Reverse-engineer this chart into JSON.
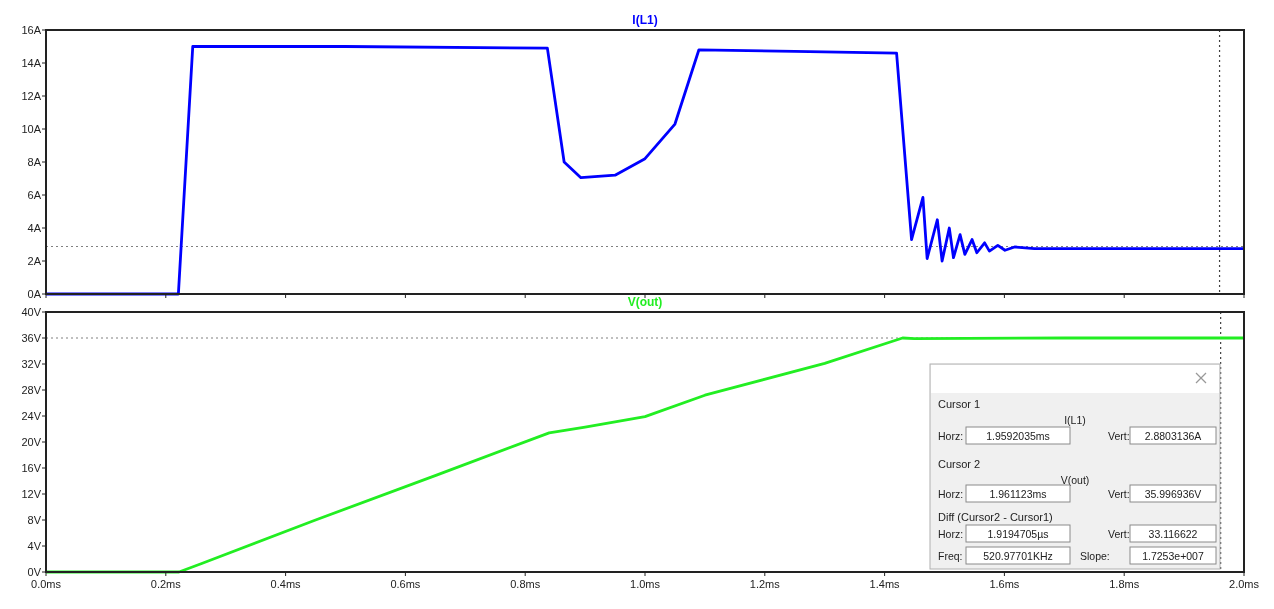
{
  "chart_data": [
    {
      "type": "line",
      "tick_labels": "y",
      "grid": false,
      "marker": "none",
      "line_style": "solid",
      "xlim": [
        0,
        2.0
      ],
      "xticks": [
        {
          "value": 0,
          "label": null
        },
        {
          "value": 0.2,
          "label": null
        },
        {
          "value": 0.4,
          "label": null
        },
        {
          "value": 0.6,
          "label": null
        },
        {
          "value": 0.8,
          "label": null
        },
        {
          "value": 1.0,
          "label": null
        },
        {
          "value": 1.2,
          "label": null
        },
        {
          "value": 1.4,
          "label": null
        },
        {
          "value": 1.6,
          "label": null
        },
        {
          "value": 1.8,
          "label": null
        },
        {
          "value": 2.0,
          "label": null
        }
      ],
      "ylim": [
        0,
        16
      ],
      "yticks": [
        {
          "value": 0,
          "label": "0A"
        },
        {
          "value": 2,
          "label": "2A"
        },
        {
          "value": 4,
          "label": "4A"
        },
        {
          "value": 6,
          "label": "6A"
        },
        {
          "value": 8,
          "label": "8A"
        },
        {
          "value": 10,
          "label": "10A"
        },
        {
          "value": 12,
          "label": "12A"
        },
        {
          "value": 14,
          "label": "14A"
        },
        {
          "value": 16,
          "label": "16A"
        }
      ],
      "series": [
        {
          "name": "I(L1)",
          "color": "#0000ff",
          "x": [
            0,
            0.221,
            0.245,
            0.5,
            0.837,
            0.865,
            0.893,
            0.95,
            1.0,
            1.05,
            1.09,
            1.25,
            1.42,
            1.445,
            1.464,
            1.471,
            1.488,
            1.496,
            1.508,
            1.515,
            1.526,
            1.534,
            1.546,
            1.554,
            1.567,
            1.575,
            1.589,
            1.601,
            1.617,
            1.65,
            1.8,
            2.0
          ],
          "values": [
            0,
            0,
            15.0,
            15.0,
            14.9,
            8.0,
            7.05,
            7.2,
            8.2,
            10.3,
            14.8,
            14.7,
            14.6,
            3.3,
            5.85,
            2.15,
            4.5,
            2.0,
            4.0,
            2.2,
            3.6,
            2.4,
            3.3,
            2.5,
            3.1,
            2.6,
            2.95,
            2.65,
            2.85,
            2.75,
            2.75,
            2.75
          ]
        }
      ],
      "ref_lines": [
        {
          "axis": "y",
          "value": 2.88,
          "color": "#808080",
          "line_style": "dotted"
        },
        {
          "axis": "x",
          "value": 1.9592,
          "color": "#404040",
          "line_style": "dotted"
        }
      ]
    },
    {
      "type": "line",
      "grid": false,
      "marker": "none",
      "line_style": "solid",
      "xlim": [
        0,
        2.0
      ],
      "xticks": [
        {
          "value": 0,
          "label": "0.0ms"
        },
        {
          "value": 0.2,
          "label": "0.2ms"
        },
        {
          "value": 0.4,
          "label": "0.4ms"
        },
        {
          "value": 0.6,
          "label": "0.6ms"
        },
        {
          "value": 0.8,
          "label": "0.8ms"
        },
        {
          "value": 1.0,
          "label": "1.0ms"
        },
        {
          "value": 1.2,
          "label": "1.2ms"
        },
        {
          "value": 1.4,
          "label": "1.4ms"
        },
        {
          "value": 1.6,
          "label": "1.6ms"
        },
        {
          "value": 1.8,
          "label": "1.8ms"
        },
        {
          "value": 2.0,
          "label": "2.0ms"
        }
      ],
      "ylim": [
        0,
        40
      ],
      "yticks": [
        {
          "value": 0,
          "label": "0V"
        },
        {
          "value": 4,
          "label": "4V"
        },
        {
          "value": 8,
          "label": "8V"
        },
        {
          "value": 12,
          "label": "12V"
        },
        {
          "value": 16,
          "label": "16V"
        },
        {
          "value": 20,
          "label": "20V"
        },
        {
          "value": 24,
          "label": "24V"
        },
        {
          "value": 28,
          "label": "28V"
        },
        {
          "value": 32,
          "label": "32V"
        },
        {
          "value": 36,
          "label": "36V"
        },
        {
          "value": 40,
          "label": "40V"
        }
      ],
      "series": [
        {
          "name": "V(out)",
          "color": "#22ee22",
          "x": [
            0,
            0.222,
            0.26,
            0.45,
            0.652,
            0.84,
            0.9,
            1.0,
            1.1,
            1.3,
            1.43,
            1.45,
            1.7,
            2.0
          ],
          "values": [
            0,
            0,
            1.3,
            8.0,
            14.9,
            21.4,
            22.3,
            23.9,
            27.2,
            32.1,
            36.0,
            35.9,
            36.0,
            36.0
          ]
        }
      ],
      "ref_lines": [
        {
          "axis": "y",
          "value": 36.0,
          "color": "#808080",
          "line_style": "dotted"
        },
        {
          "axis": "x",
          "value": 1.961,
          "color": "#404040",
          "line_style": "dotted"
        }
      ],
      "annotations": [
        "Cursor 1",
        "I(L1)",
        "Horz:",
        "1.9592035ms",
        "Vert:",
        "2.8803136A",
        "Cursor 2",
        "V(out)",
        "Horz:",
        "1.961123ms",
        "Vert:",
        "35.996936V",
        "Diff (Cursor2 - Cursor1)",
        "Horz:",
        "1.9194705µs",
        "Vert:",
        "33.116622",
        "Freq:",
        "520.97701KHz",
        "Slope:",
        "1.7253e+007"
      ]
    }
  ]
}
